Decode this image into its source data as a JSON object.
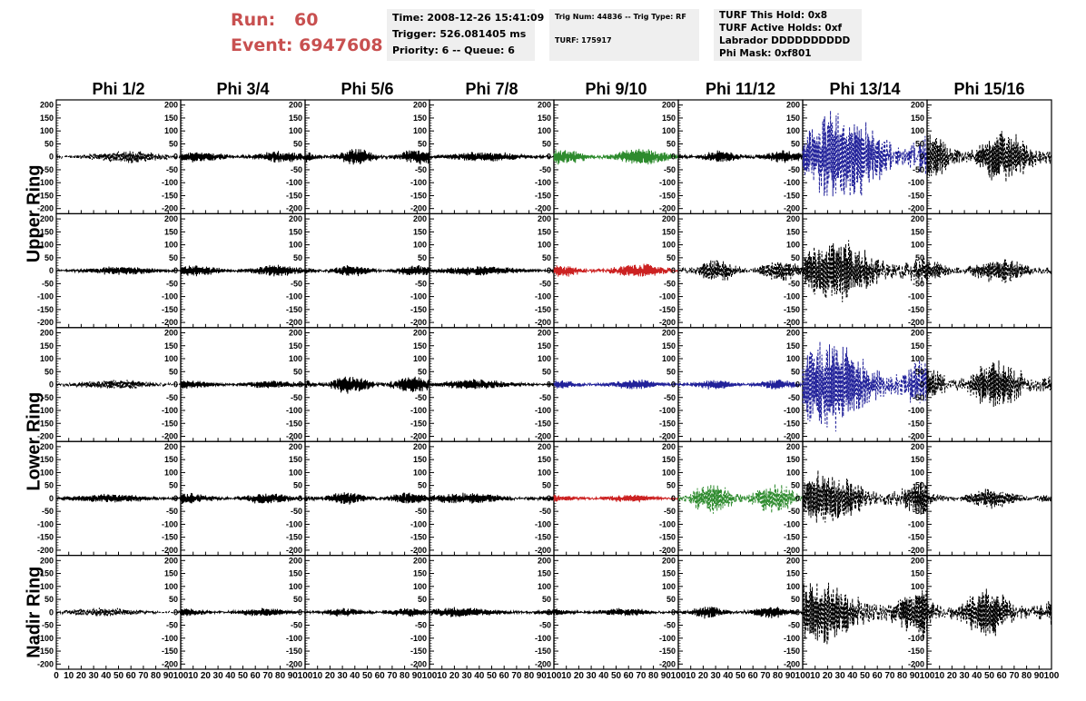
{
  "header": {
    "run_label": "Run:",
    "run_value": "60",
    "event_label": "Event:",
    "event_value": "6947608",
    "time_line": "Time: 2008-12-26 15:41:09",
    "trigger_line": "Trigger: 526.081405 ms",
    "priority_line": "Priority: 6 -- Queue: 6",
    "trig_line": "Trig Num: 44836 -- Trig Type: RF",
    "turf_line": "TURF: 175917",
    "turf_hold_line": "TURF This Hold: 0x8",
    "turf_active_line": "TURF Active Holds: 0xf",
    "labrador_line": "Labrador DDDDDDDDDD",
    "phi_mask_line": "Phi Mask: 0xf801"
  },
  "chart_data": {
    "type": "line",
    "title": "",
    "columns": [
      "Phi 1/2",
      "Phi 3/4",
      "Phi 5/6",
      "Phi 7/8",
      "Phi 9/10",
      "Phi 11/12",
      "Phi 13/14",
      "Phi 15/16"
    ],
    "ring_labels": [
      {
        "text": "Upper Ring",
        "rows": [
          0,
          1
        ]
      },
      {
        "text": "Lower Ring",
        "rows": [
          2,
          3
        ]
      },
      {
        "text": "Nadir Ring",
        "rows": [
          4,
          4
        ]
      }
    ],
    "xlim": [
      0,
      100
    ],
    "ylim": [
      -220,
      220
    ],
    "y_ticks": [
      -200,
      -150,
      -100,
      -50,
      0,
      50,
      100,
      150,
      200
    ],
    "x_ticks": [
      0,
      10,
      20,
      30,
      40,
      50,
      60,
      70,
      80,
      90,
      100
    ],
    "colors": {
      "default": "#000000",
      "green": "#2e8b2e",
      "red": "#cc2222",
      "blue": "#22229a"
    },
    "panels": [
      [
        {
          "amp": 22,
          "color": "default",
          "dashed": true
        },
        {
          "amp": 20,
          "color": "default",
          "dashed": false
        },
        {
          "amp": 28,
          "color": "default",
          "dashed": false
        },
        {
          "amp": 18,
          "color": "default",
          "dashed": false
        },
        {
          "amp": 30,
          "color": "green",
          "dashed": false
        },
        {
          "amp": 22,
          "color": "default",
          "dashed": false
        },
        {
          "amp": 160,
          "color": "blue",
          "dashed": true
        },
        {
          "amp": 95,
          "color": "default",
          "dashed": true
        }
      ],
      [
        {
          "amp": 15,
          "color": "default",
          "dashed": false
        },
        {
          "amp": 20,
          "color": "default",
          "dashed": false
        },
        {
          "amp": 20,
          "color": "default",
          "dashed": false
        },
        {
          "amp": 18,
          "color": "default",
          "dashed": false
        },
        {
          "amp": 25,
          "color": "red",
          "dashed": false
        },
        {
          "amp": 40,
          "color": "default",
          "dashed": true
        },
        {
          "amp": 110,
          "color": "default",
          "dashed": true
        },
        {
          "amp": 45,
          "color": "default",
          "dashed": true
        }
      ],
      [
        {
          "amp": 18,
          "color": "default",
          "dashed": true
        },
        {
          "amp": 15,
          "color": "default",
          "dashed": false
        },
        {
          "amp": 32,
          "color": "default",
          "dashed": false
        },
        {
          "amp": 18,
          "color": "default",
          "dashed": false
        },
        {
          "amp": 18,
          "color": "blue",
          "dashed": false
        },
        {
          "amp": 18,
          "color": "blue",
          "dashed": false
        },
        {
          "amp": 155,
          "color": "blue",
          "dashed": true
        },
        {
          "amp": 90,
          "color": "default",
          "dashed": true
        }
      ],
      [
        {
          "amp": 16,
          "color": "default",
          "dashed": false
        },
        {
          "amp": 20,
          "color": "default",
          "dashed": false
        },
        {
          "amp": 22,
          "color": "default",
          "dashed": false
        },
        {
          "amp": 20,
          "color": "default",
          "dashed": false
        },
        {
          "amp": 14,
          "color": "red",
          "dashed": false
        },
        {
          "amp": 55,
          "color": "green",
          "dashed": true
        },
        {
          "amp": 95,
          "color": "default",
          "dashed": true
        },
        {
          "amp": 35,
          "color": "default",
          "dashed": true
        }
      ],
      [
        {
          "amp": 15,
          "color": "default",
          "dashed": true
        },
        {
          "amp": 15,
          "color": "default",
          "dashed": false
        },
        {
          "amp": 16,
          "color": "default",
          "dashed": false
        },
        {
          "amp": 18,
          "color": "default",
          "dashed": false
        },
        {
          "amp": 15,
          "color": "default",
          "dashed": false
        },
        {
          "amp": 22,
          "color": "default",
          "dashed": false
        },
        {
          "amp": 120,
          "color": "default",
          "dashed": true
        },
        {
          "amp": 85,
          "color": "default",
          "dashed": true
        }
      ]
    ]
  }
}
